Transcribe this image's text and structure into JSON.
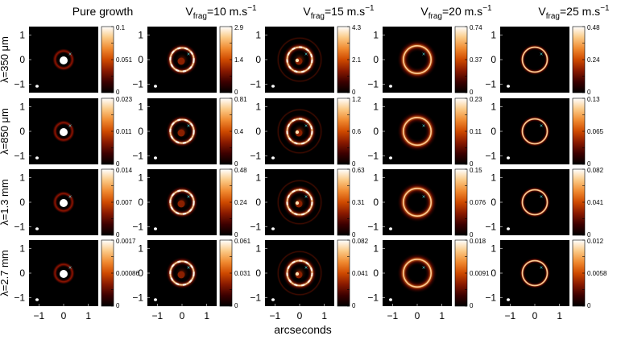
{
  "figure": {
    "column_titles": [
      {
        "base": "Pure growth",
        "sub": "",
        "rest": "",
        "sup": ""
      },
      {
        "base": "V",
        "sub": "frag",
        "rest": "=10 m.s",
        "sup": "−1"
      },
      {
        "base": "V",
        "sub": "frag",
        "rest": "=15 m.s",
        "sup": "−1"
      },
      {
        "base": "V",
        "sub": "frag",
        "rest": "=20 m.s",
        "sup": "−1"
      },
      {
        "base": "V",
        "sub": "frag",
        "rest": "=25 m.s",
        "sup": "−1"
      }
    ],
    "row_labels": [
      "λ=350 μm",
      "λ=850 μm",
      "λ=1.3 mm",
      "λ=2.7 mm"
    ],
    "xlabel": "arcseconds",
    "x_ticks": [
      "−1",
      "0",
      "1"
    ],
    "y_ticks": [
      "1",
      "0",
      "−1"
    ],
    "colormap": [
      "#000000",
      "#3d0000",
      "#8a1a00",
      "#cf4a00",
      "#f08a30",
      "#fbc985",
      "#ffffff"
    ],
    "marker_color": "#4fd8d8"
  },
  "chart_data": {
    "type": "heatmap",
    "xlabel": "arcseconds",
    "ylabel": "",
    "xlim": [
      -1.4,
      1.4
    ],
    "ylim": [
      -1.4,
      1.4
    ],
    "colorbar_max": [
      [
        "0.1",
        "2.9",
        "4.3",
        "0.74",
        "0.48"
      ],
      [
        "0.023",
        "0.81",
        "1.2",
        "0.23",
        "0.13"
      ],
      [
        "0.014",
        "0.48",
        "0.63",
        "0.15",
        "0.082"
      ],
      [
        "0.0017",
        "0.061",
        "0.082",
        "0.018",
        "0.012"
      ]
    ],
    "colorbar_mid": [
      [
        "0.051",
        "1.4",
        "2.1",
        "0.37",
        "0.24"
      ],
      [
        "0.011",
        "0.4",
        "0.6",
        "0.11",
        "0.065"
      ],
      [
        "0.007",
        "0.24",
        "0.31",
        "0.076",
        "0.041"
      ],
      [
        "0.00086",
        "0.031",
        "0.041",
        "0.0091",
        "0.0058"
      ]
    ],
    "colorbar_min": "0"
  }
}
